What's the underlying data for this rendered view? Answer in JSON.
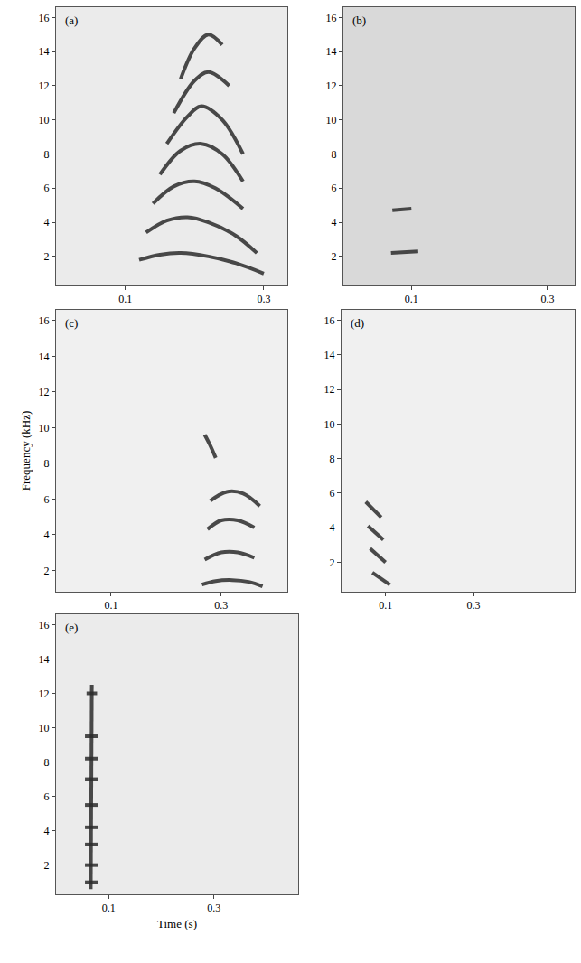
{
  "chart_data": [
    {
      "type": "line",
      "title": "(a)",
      "color": "#2b2b2b",
      "grid": false,
      "xlim": [
        0,
        0.334
      ],
      "xticks": [
        0.1,
        0.3
      ],
      "ylim": [
        0.3,
        16.6
      ],
      "yticks": [
        2,
        4,
        6,
        8,
        10,
        12,
        14,
        16
      ],
      "series": [
        {
          "x": [
            0.12,
            0.15,
            0.18,
            0.22,
            0.26,
            0.3
          ],
          "values": [
            1.8,
            2.1,
            2.2,
            2.0,
            1.6,
            1.0
          ]
        },
        {
          "x": [
            0.13,
            0.16,
            0.19,
            0.22,
            0.26,
            0.29
          ],
          "values": [
            3.4,
            4.1,
            4.3,
            4.0,
            3.2,
            2.2
          ]
        },
        {
          "x": [
            0.14,
            0.17,
            0.2,
            0.23,
            0.27
          ],
          "values": [
            5.1,
            6.1,
            6.4,
            6.0,
            4.8
          ]
        },
        {
          "x": [
            0.15,
            0.18,
            0.21,
            0.24,
            0.27
          ],
          "values": [
            6.8,
            8.2,
            8.6,
            8.0,
            6.4
          ]
        },
        {
          "x": [
            0.16,
            0.19,
            0.21,
            0.24,
            0.27
          ],
          "values": [
            8.6,
            10.2,
            10.8,
            10.0,
            8.0
          ]
        },
        {
          "x": [
            0.17,
            0.2,
            0.22,
            0.25
          ],
          "values": [
            10.4,
            12.3,
            12.8,
            12.0
          ]
        },
        {
          "x": [
            0.18,
            0.2,
            0.22,
            0.24
          ],
          "values": [
            12.4,
            14.2,
            15.0,
            14.4
          ]
        }
      ]
    },
    {
      "type": "line",
      "title": "(b)",
      "color": "#2b2b2b",
      "grid": false,
      "xlim": [
        0,
        0.34
      ],
      "xticks": [
        0.1,
        0.3
      ],
      "ylim": [
        0.3,
        16.6
      ],
      "yticks": [
        2,
        4,
        6,
        8,
        10,
        12,
        14,
        16
      ],
      "series": [
        {
          "x": [
            0.07,
            0.11
          ],
          "values": [
            2.2,
            2.3
          ]
        },
        {
          "x": [
            0.072,
            0.1
          ],
          "values": [
            4.7,
            4.8
          ]
        }
      ]
    },
    {
      "type": "line",
      "title": "(c)",
      "color": "#2b2b2b",
      "grid": false,
      "y_label": "Frequency (kHz)",
      "xlim": [
        0,
        0.42
      ],
      "xticks": [
        0.1,
        0.3
      ],
      "ylim": [
        0.8,
        16.6
      ],
      "yticks": [
        2,
        4,
        6,
        8,
        10,
        12,
        14,
        16
      ],
      "series": [
        {
          "x": [
            0.265,
            0.29,
            0.32,
            0.35,
            0.375
          ],
          "values": [
            1.2,
            1.4,
            1.45,
            1.35,
            1.1
          ]
        },
        {
          "x": [
            0.27,
            0.3,
            0.33,
            0.36
          ],
          "values": [
            2.6,
            3.0,
            3.0,
            2.7
          ]
        },
        {
          "x": [
            0.275,
            0.3,
            0.33,
            0.36
          ],
          "values": [
            4.3,
            4.8,
            4.8,
            4.4
          ]
        },
        {
          "x": [
            0.28,
            0.31,
            0.34,
            0.37
          ],
          "values": [
            5.9,
            6.4,
            6.3,
            5.6
          ]
        },
        {
          "x": [
            0.27,
            0.28,
            0.29
          ],
          "values": [
            9.6,
            9.0,
            8.3
          ]
        }
      ]
    },
    {
      "type": "line",
      "title": "(d)",
      "color": "#2b2b2b",
      "grid": false,
      "xlim": [
        0,
        0.53
      ],
      "xticks": [
        0.1,
        0.3
      ],
      "ylim": [
        0.3,
        16.6
      ],
      "yticks": [
        2,
        4,
        6,
        8,
        10,
        12,
        14,
        16
      ],
      "series": [
        {
          "x": [
            0.07,
            0.11
          ],
          "values": [
            1.4,
            0.7
          ]
        },
        {
          "x": [
            0.065,
            0.1
          ],
          "values": [
            2.8,
            2.0
          ]
        },
        {
          "x": [
            0.06,
            0.095
          ],
          "values": [
            4.1,
            3.3
          ]
        },
        {
          "x": [
            0.055,
            0.09
          ],
          "values": [
            5.5,
            4.6
          ]
        }
      ]
    },
    {
      "type": "line",
      "title": "(e)",
      "color": "#2b2b2b",
      "grid": false,
      "x_label": "Time (s)",
      "xlim": [
        0,
        0.46
      ],
      "xticks": [
        0.1,
        0.3
      ],
      "ylim": [
        0.3,
        16.6
      ],
      "yticks": [
        2,
        4,
        6,
        8,
        10,
        12,
        14,
        16
      ],
      "series": [
        {
          "x": [
            0.055,
            0.08
          ],
          "values": [
            1.0,
            1.0
          ]
        },
        {
          "x": [
            0.055,
            0.08
          ],
          "values": [
            2.0,
            2.0
          ]
        },
        {
          "x": [
            0.055,
            0.08
          ],
          "values": [
            3.2,
            3.2
          ]
        },
        {
          "x": [
            0.055,
            0.08
          ],
          "values": [
            4.2,
            4.2
          ]
        },
        {
          "x": [
            0.055,
            0.08
          ],
          "values": [
            5.5,
            5.5
          ]
        },
        {
          "x": [
            0.055,
            0.08
          ],
          "values": [
            7.0,
            7.0
          ]
        },
        {
          "x": [
            0.055,
            0.08
          ],
          "values": [
            8.2,
            8.2
          ]
        },
        {
          "x": [
            0.055,
            0.08
          ],
          "values": [
            9.5,
            9.5
          ]
        },
        {
          "x": [
            0.058,
            0.078
          ],
          "values": [
            12.0,
            12.0
          ]
        },
        {
          "x": [
            0.066,
            0.068
          ],
          "values": [
            0.6,
            12.5
          ]
        }
      ]
    }
  ]
}
